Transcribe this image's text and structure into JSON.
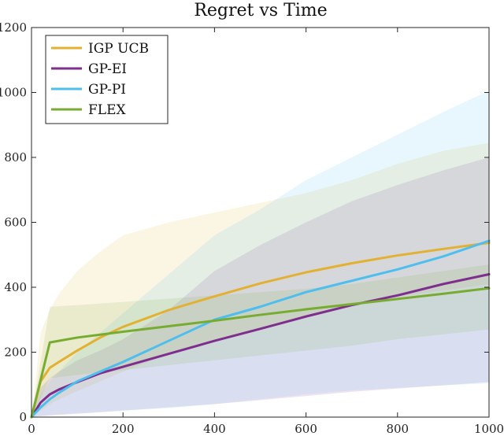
{
  "chart_data": {
    "type": "line",
    "title": "Regret vs Time",
    "xlabel": "",
    "ylabel": "",
    "xlim": [
      0,
      1000
    ],
    "ylim": [
      0,
      1200
    ],
    "xticks": [
      0,
      200,
      400,
      600,
      800,
      1000
    ],
    "yticks": [
      0,
      200,
      400,
      600,
      800,
      1000,
      1200
    ],
    "grid": false,
    "legend_position": "top-left",
    "series": [
      {
        "name": "IGP UCB",
        "color": "#E3B132",
        "x": [
          0,
          20,
          40,
          60,
          100,
          150,
          200,
          300,
          400,
          500,
          600,
          700,
          800,
          900,
          1000
        ],
        "y": [
          0,
          110,
          152,
          170,
          205,
          245,
          278,
          330,
          372,
          412,
          446,
          474,
          498,
          518,
          537
        ],
        "band_upper": [
          0,
          260,
          330,
          380,
          450,
          510,
          560,
          600,
          630,
          660,
          690,
          730,
          780,
          820,
          845
        ],
        "band_lower": [
          0,
          20,
          40,
          55,
          80,
          110,
          140,
          195,
          240,
          275,
          310,
          345,
          370,
          390,
          410
        ]
      },
      {
        "name": "GP-EI",
        "color": "#7E2F8E",
        "x": [
          0,
          20,
          40,
          60,
          100,
          150,
          200,
          300,
          400,
          500,
          600,
          700,
          800,
          900,
          1000
        ],
        "y": [
          0,
          45,
          70,
          85,
          108,
          135,
          155,
          195,
          235,
          272,
          310,
          345,
          375,
          410,
          440
        ],
        "band_upper": [
          0,
          90,
          120,
          140,
          175,
          205,
          240,
          330,
          450,
          530,
          600,
          665,
          715,
          760,
          800
        ],
        "band_lower": [
          0,
          3,
          5,
          7,
          10,
          15,
          20,
          30,
          40,
          52,
          65,
          78,
          88,
          98,
          108
        ]
      },
      {
        "name": "GP-PI",
        "color": "#4DBEEE",
        "x": [
          0,
          20,
          40,
          60,
          100,
          150,
          200,
          300,
          400,
          500,
          600,
          700,
          800,
          900,
          1000
        ],
        "y": [
          0,
          30,
          55,
          75,
          110,
          140,
          170,
          235,
          300,
          340,
          385,
          420,
          455,
          495,
          543
        ],
        "band_upper": [
          0,
          70,
          110,
          140,
          200,
          260,
          320,
          440,
          560,
          640,
          730,
          800,
          870,
          940,
          1005
        ],
        "band_lower": [
          0,
          3,
          6,
          8,
          12,
          16,
          20,
          28,
          40,
          55,
          70,
          82,
          90,
          98,
          104
        ]
      },
      {
        "name": "FLEX",
        "color": "#77AC30",
        "x": [
          0,
          40,
          100,
          200,
          300,
          400,
          500,
          600,
          700,
          800,
          900,
          1000
        ],
        "y": [
          0,
          230,
          245,
          263,
          280,
          297,
          315,
          332,
          348,
          364,
          380,
          397
        ],
        "band_upper": [
          0,
          340,
          345,
          355,
          365,
          375,
          385,
          395,
          410,
          430,
          450,
          470
        ],
        "band_lower": [
          0,
          120,
          130,
          145,
          160,
          175,
          190,
          205,
          220,
          240,
          255,
          270
        ]
      }
    ]
  }
}
